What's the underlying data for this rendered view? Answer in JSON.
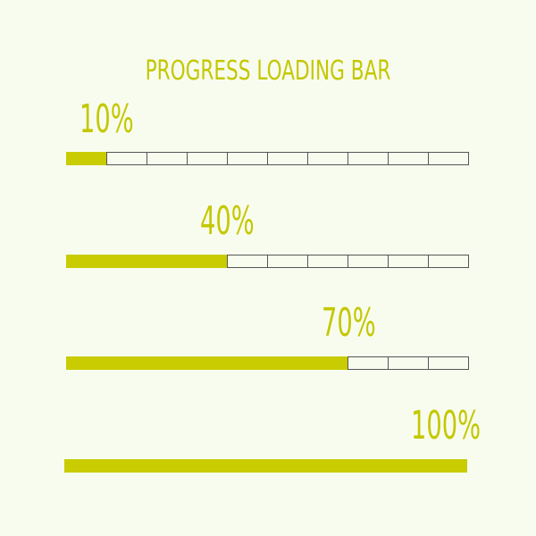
{
  "title": "PROGRESS LOADING BAR",
  "accent_color": "#c8cc00",
  "bars": [
    {
      "label": "10%",
      "value": 10
    },
    {
      "label": "40%",
      "value": 40
    },
    {
      "label": "70%",
      "value": 70
    },
    {
      "label": "100%",
      "value": 100
    }
  ]
}
